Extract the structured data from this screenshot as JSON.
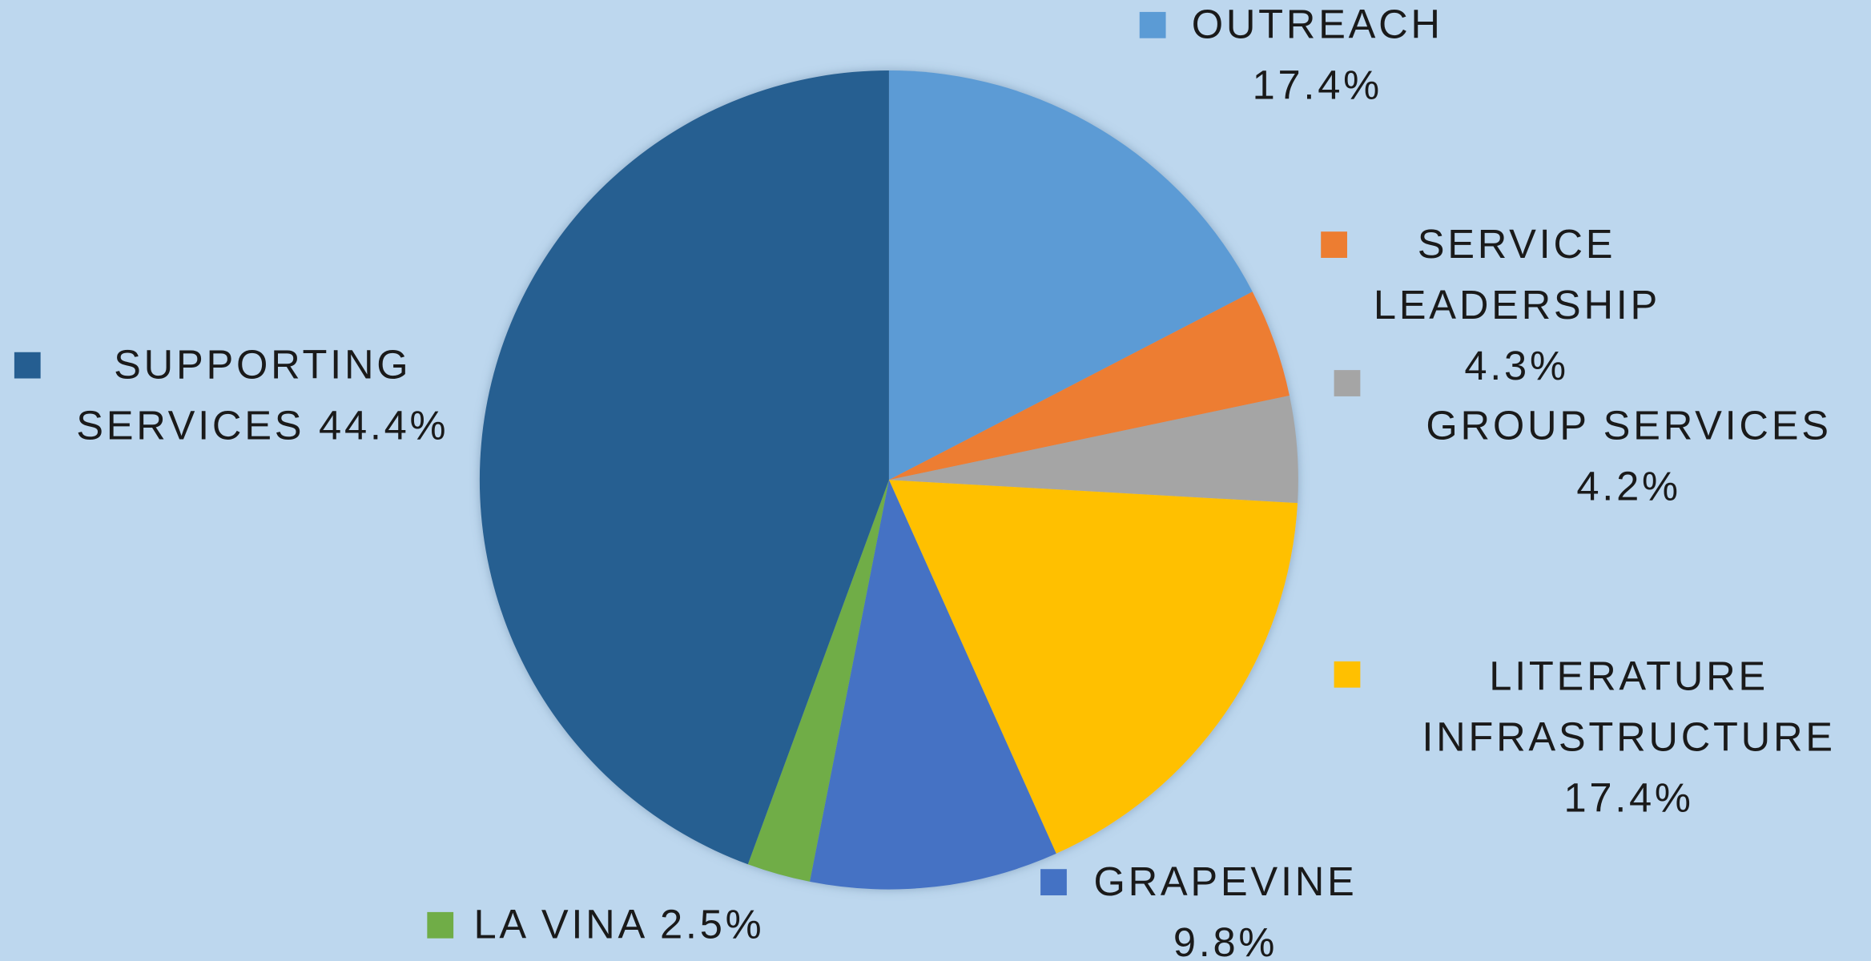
{
  "chart_data": {
    "type": "pie",
    "categories": [
      "OUTREACH",
      "SERVICE LEADERSHIP",
      "GROUP SERVICES",
      "LITERATURE INFRASTRUCTURE",
      "GRAPEVINE",
      "LA VINA",
      "SUPPORTING SERVICES"
    ],
    "values": [
      17.4,
      4.3,
      4.2,
      17.4,
      9.8,
      2.5,
      44.4
    ],
    "value_labels": [
      "17.4%",
      "4.3%",
      "4.2%",
      "17.4%",
      "9.8%",
      "2.5%",
      "44.4%"
    ],
    "colors": [
      "#5b9bd5",
      "#ed7d31",
      "#a5a5a5",
      "#ffc000",
      "#4472c4",
      "#70ad47",
      "#255e91"
    ]
  }
}
